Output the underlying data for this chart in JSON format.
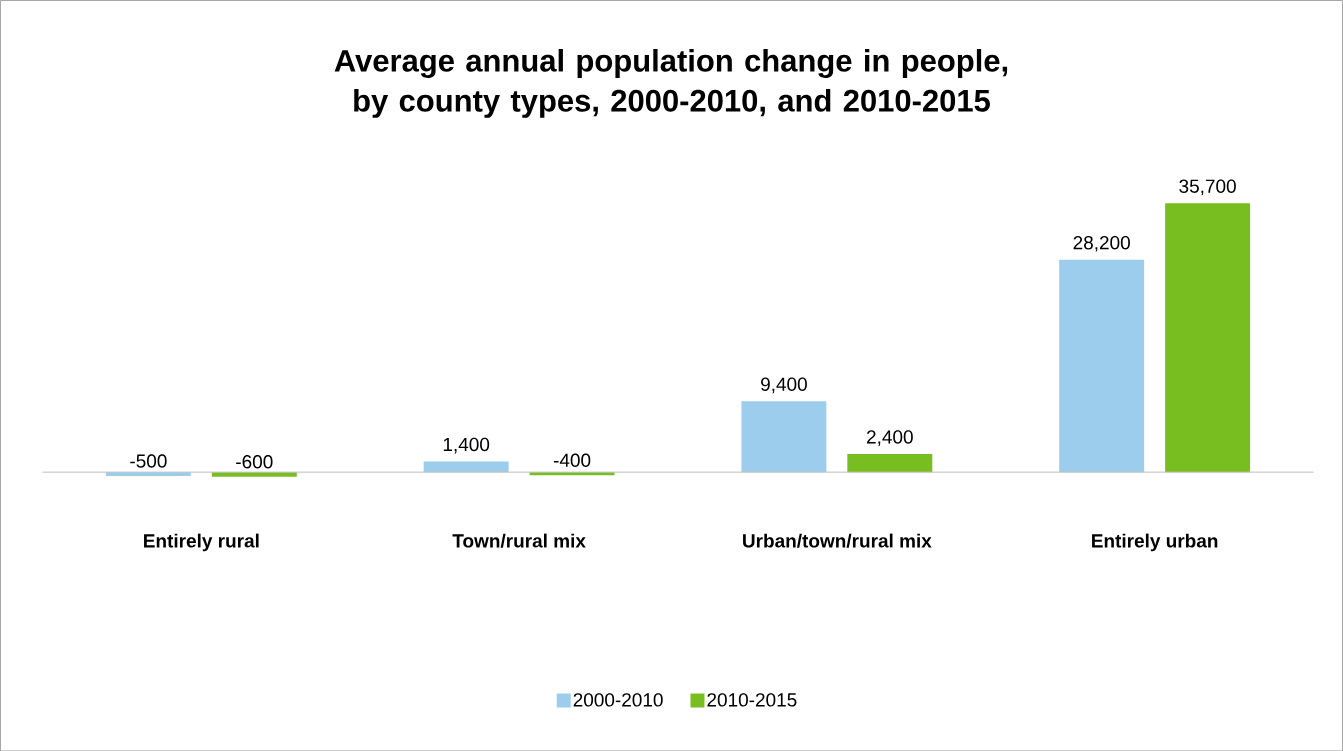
{
  "chart_data": {
    "type": "bar",
    "title": "Average annual population change in people, by county types, 2000-2010, and 2010-2015",
    "categories": [
      "Entirely rural",
      "Town/rural mix",
      "Urban/town/rural mix",
      "Entirely urban"
    ],
    "series": [
      {
        "name": "2000-2010",
        "color": "#9dcdec",
        "values": [
          -500,
          1400,
          9400,
          28200
        ],
        "value_labels": [
          "-500",
          "1,400",
          "9,400",
          "28,200"
        ]
      },
      {
        "name": "2010-2015",
        "color": "#78be21",
        "values": [
          -600,
          -400,
          2400,
          35700
        ],
        "value_labels": [
          "-600",
          "-400",
          "2,400",
          "35,700"
        ]
      }
    ],
    "legend": "bottom"
  }
}
